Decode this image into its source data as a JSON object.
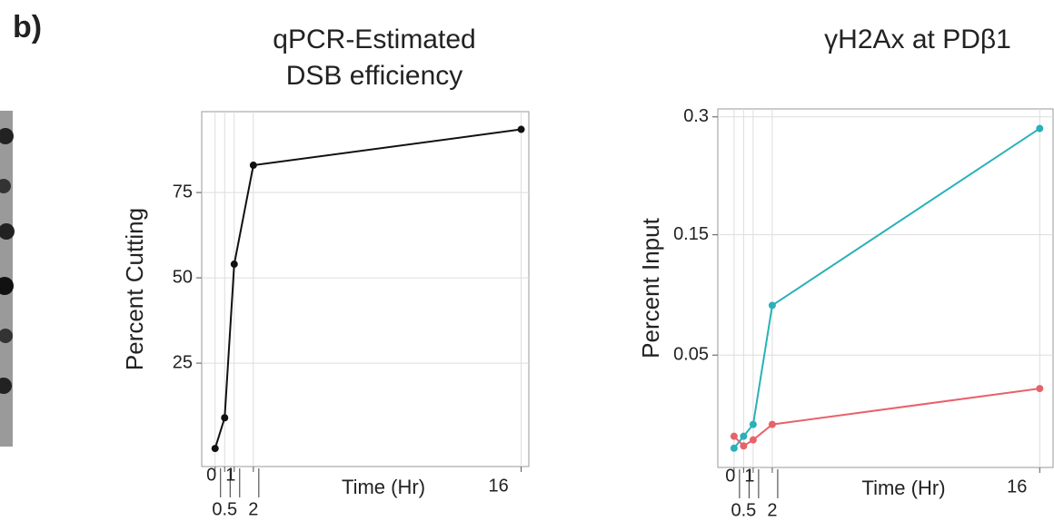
{
  "panel_label": "b)",
  "chart_data": [
    {
      "type": "line",
      "title": [
        "qPCR-Estimated",
        "DSB efficiency"
      ],
      "x_label": "Time (Hr)",
      "y_label": "Percent Cutting",
      "x": [
        0,
        0.5,
        1,
        2,
        16
      ],
      "series": [
        {
          "name": null,
          "color": "#111111",
          "values": [
            0,
            9,
            54,
            83,
            93.5
          ]
        }
      ],
      "xlim": [
        -0.7,
        16.4
      ],
      "xticks": [
        0,
        0.5,
        1,
        2,
        16
      ],
      "ylim": [
        -5.3,
        98.7
      ],
      "yticks": [
        25,
        50,
        75
      ],
      "grid": true
    },
    {
      "type": "line",
      "title": [
        "γH2Ax at PDβ1"
      ],
      "x_label": "Time (Hr)",
      "y_label": "Percent Input",
      "x": [
        0,
        0.5,
        1,
        2,
        16
      ],
      "series": [
        {
          "name": null,
          "color": "#2ab0b8",
          "values": [
            0.0094,
            0.0128,
            0.0167,
            0.0848,
            0.283
          ]
        },
        {
          "name": null,
          "color": "#e8626a",
          "values": [
            0.0128,
            0.01,
            0.0117,
            0.0167,
            0.0317
          ]
        }
      ],
      "xlim": [
        -0.85,
        16.7
      ],
      "xticks": [
        0,
        0.5,
        1,
        2,
        16
      ],
      "ylim": [
        0.005,
        0.312
      ],
      "yticks": [
        0.05,
        0.15,
        0.3
      ],
      "yscale": "sqrt",
      "grid": true
    }
  ]
}
